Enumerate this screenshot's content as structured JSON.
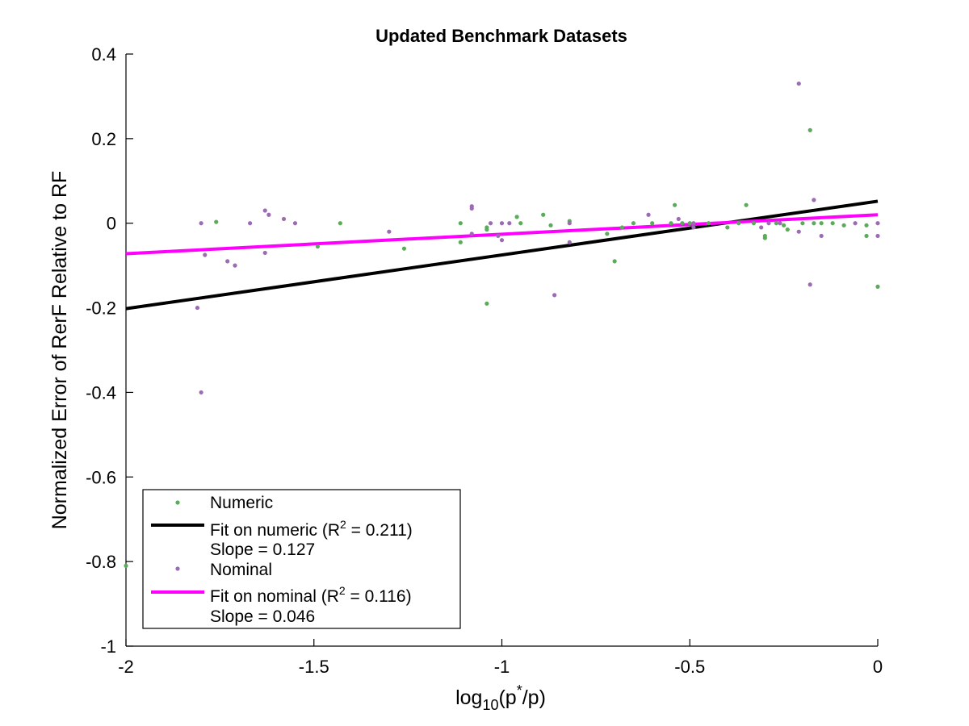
{
  "chart_data": {
    "type": "scatter",
    "title": "Updated Benchmark Datasets",
    "xlabel": {
      "base": "log",
      "sub": "10",
      "pre": "(p",
      "sup": "*",
      "post": "/p)"
    },
    "ylabel": "Normalized Error of RerF Relative to RF",
    "xlim": [
      -2,
      0
    ],
    "ylim": [
      -1,
      0.4
    ],
    "xticks": [
      -2,
      -1.5,
      -1,
      -0.5,
      0
    ],
    "xtick_labels": [
      "-2",
      "-1.5",
      "-1",
      "-0.5",
      "0"
    ],
    "yticks": [
      -1,
      -0.8,
      -0.6,
      -0.4,
      -0.2,
      0,
      0.2,
      0.4
    ],
    "ytick_labels": [
      "-1",
      "-0.8",
      "-0.6",
      "-0.4",
      "-0.2",
      "0",
      "0.2",
      "0.4"
    ],
    "grid": false,
    "legend_position": "bottom-left",
    "series": [
      {
        "name": "Numeric",
        "kind": "points",
        "color": "#5aac5a",
        "points": [
          [
            -2.0,
            -0.81
          ],
          [
            -1.76,
            0.003
          ],
          [
            -1.49,
            -0.055
          ],
          [
            -1.43,
            0.0
          ],
          [
            -1.26,
            -0.06
          ],
          [
            -1.11,
            0.0
          ],
          [
            -1.11,
            -0.045
          ],
          [
            -1.04,
            -0.015
          ],
          [
            -1.04,
            -0.01
          ],
          [
            -1.04,
            -0.19
          ],
          [
            -0.96,
            0.015
          ],
          [
            -0.95,
            0.0
          ],
          [
            -0.89,
            0.02
          ],
          [
            -0.87,
            -0.005
          ],
          [
            -0.82,
            0.005
          ],
          [
            -0.72,
            -0.025
          ],
          [
            -0.7,
            -0.09
          ],
          [
            -0.68,
            -0.01
          ],
          [
            -0.65,
            0.0
          ],
          [
            -0.6,
            0.0
          ],
          [
            -0.55,
            0.0
          ],
          [
            -0.54,
            0.043
          ],
          [
            -0.52,
            0.0
          ],
          [
            -0.5,
            0.0
          ],
          [
            -0.45,
            0.0
          ],
          [
            -0.4,
            -0.01
          ],
          [
            -0.37,
            0.0
          ],
          [
            -0.35,
            0.043
          ],
          [
            -0.33,
            0.0
          ],
          [
            -0.3,
            -0.03
          ],
          [
            -0.3,
            -0.035
          ],
          [
            -0.27,
            0.0
          ],
          [
            -0.25,
            -0.005
          ],
          [
            -0.24,
            -0.015
          ],
          [
            -0.2,
            0.0
          ],
          [
            -0.18,
            0.22
          ],
          [
            -0.17,
            0.0
          ],
          [
            -0.15,
            0.0
          ],
          [
            -0.12,
            0.0
          ],
          [
            -0.09,
            -0.005
          ],
          [
            -0.03,
            -0.03
          ],
          [
            -0.03,
            -0.005
          ],
          [
            0.0,
            -0.15
          ]
        ]
      },
      {
        "name": "Fit on numeric (R² = 0.211)",
        "legend_line1": {
          "pre": "Fit on numeric (R",
          "sup": "2",
          "post": " = 0.211)"
        },
        "legend_line2": "Slope = 0.127",
        "kind": "line",
        "color": "#000000",
        "slope": 0.127,
        "r2": 0.211,
        "x": [
          -2,
          0
        ],
        "y": [
          -0.202,
          0.052
        ]
      },
      {
        "name": "Nominal",
        "kind": "points",
        "color": "#9b6bb3",
        "points": [
          [
            -1.81,
            -0.2
          ],
          [
            -1.8,
            -0.4
          ],
          [
            -1.8,
            0.0
          ],
          [
            -1.79,
            -0.075
          ],
          [
            -1.73,
            -0.09
          ],
          [
            -1.71,
            -0.1
          ],
          [
            -1.67,
            0.0
          ],
          [
            -1.63,
            0.03
          ],
          [
            -1.63,
            -0.07
          ],
          [
            -1.62,
            0.02
          ],
          [
            -1.58,
            0.01
          ],
          [
            -1.55,
            0.0
          ],
          [
            -1.3,
            -0.02
          ],
          [
            -1.08,
            0.04
          ],
          [
            -1.08,
            0.035
          ],
          [
            -1.08,
            -0.025
          ],
          [
            -1.03,
            0.0
          ],
          [
            -1.01,
            -0.03
          ],
          [
            -1.0,
            0.0
          ],
          [
            -1.0,
            -0.04
          ],
          [
            -0.98,
            0.0
          ],
          [
            -0.86,
            -0.17
          ],
          [
            -0.82,
            -0.045
          ],
          [
            -0.82,
            0.0
          ],
          [
            -0.61,
            0.02
          ],
          [
            -0.53,
            0.01
          ],
          [
            -0.49,
            0.0
          ],
          [
            -0.49,
            -0.01
          ],
          [
            -0.31,
            -0.01
          ],
          [
            -0.29,
            0.0
          ],
          [
            -0.26,
            0.0
          ],
          [
            -0.21,
            0.33
          ],
          [
            -0.21,
            -0.02
          ],
          [
            -0.18,
            -0.145
          ],
          [
            -0.17,
            0.055
          ],
          [
            -0.15,
            -0.03
          ],
          [
            -0.06,
            0.0
          ],
          [
            0.0,
            0.0
          ],
          [
            0.0,
            -0.03
          ]
        ]
      },
      {
        "name": "Fit on nominal (R² = 0.116)",
        "legend_line1": {
          "pre": "Fit on nominal (R",
          "sup": "2",
          "post": " = 0.116)"
        },
        "legend_line2": "Slope = 0.046",
        "kind": "line",
        "color": "#ff00ff",
        "slope": 0.046,
        "r2": 0.116,
        "x": [
          -2,
          0
        ],
        "y": [
          -0.072,
          0.02
        ]
      }
    ]
  }
}
